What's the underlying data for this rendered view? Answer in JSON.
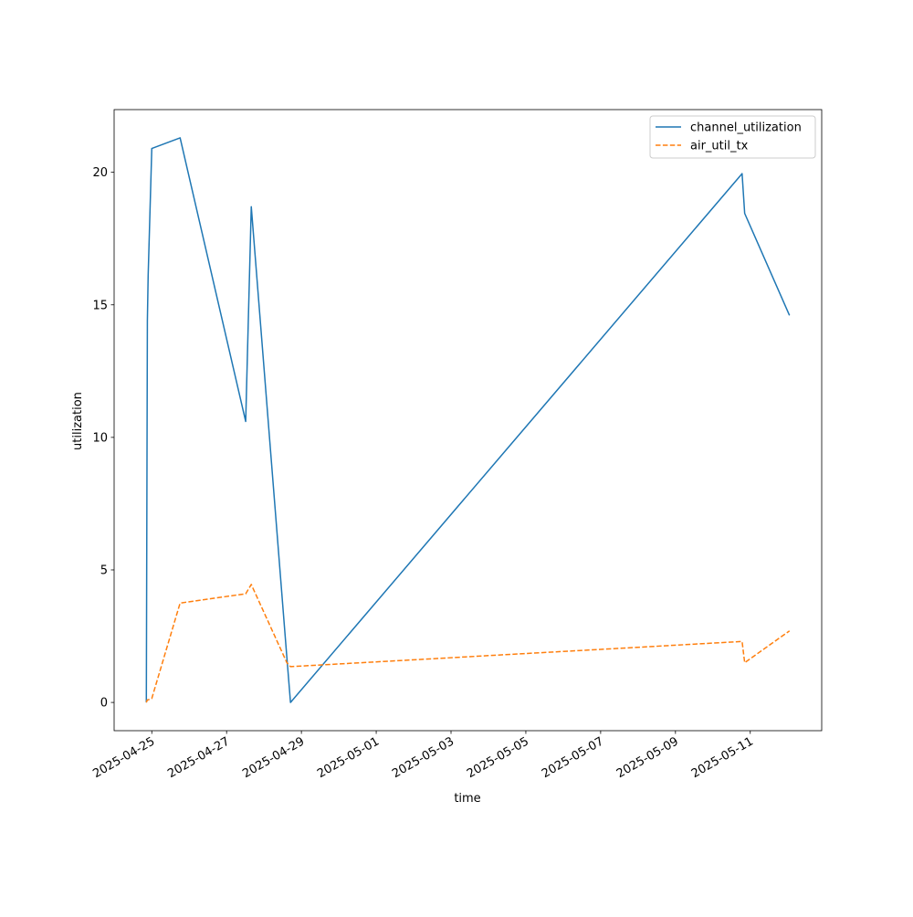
{
  "chart_data": {
    "type": "line",
    "xlabel": "time",
    "ylabel": "utilization",
    "x": [
      "2025-04-24T20:30",
      "2025-04-24T21:10",
      "2025-04-24T21:40",
      "2025-04-25T00:00",
      "2025-04-25T18:10",
      "2025-04-27T12:15",
      "2025-04-27T15:50",
      "2025-04-28T14:40",
      "2025-04-28T17:00",
      "2025-05-10T18:45",
      "2025-05-10T20:25",
      "2025-05-12T01:10"
    ],
    "series": [
      {
        "name": "channel_utilization",
        "color": "#1f77b4",
        "linestyle": "solid",
        "values": [
          0.0,
          14.4,
          16.1,
          20.9,
          21.3,
          10.6,
          18.7,
          1.7,
          0.0,
          19.95,
          18.45,
          14.6
        ]
      },
      {
        "name": "air_util_tx",
        "color": "#ff7f0e",
        "linestyle": "dashed",
        "values": [
          0.0,
          0.1,
          0.1,
          0.15,
          3.75,
          4.1,
          4.45,
          1.5,
          1.35,
          2.3,
          1.5,
          2.7
        ]
      }
    ],
    "xlim": [
      "2025-04-23T23:50",
      "2025-05-12T21:50"
    ],
    "xticks": [
      "2025-04-25",
      "2025-04-27",
      "2025-04-29",
      "2025-05-01",
      "2025-05-03",
      "2025-05-05",
      "2025-05-07",
      "2025-05-09",
      "2025-05-11"
    ],
    "ylim": [
      -1.065,
      22.365
    ],
    "yticks": [
      0,
      5,
      10,
      15,
      20
    ],
    "grid": false,
    "legend": "upper right"
  }
}
